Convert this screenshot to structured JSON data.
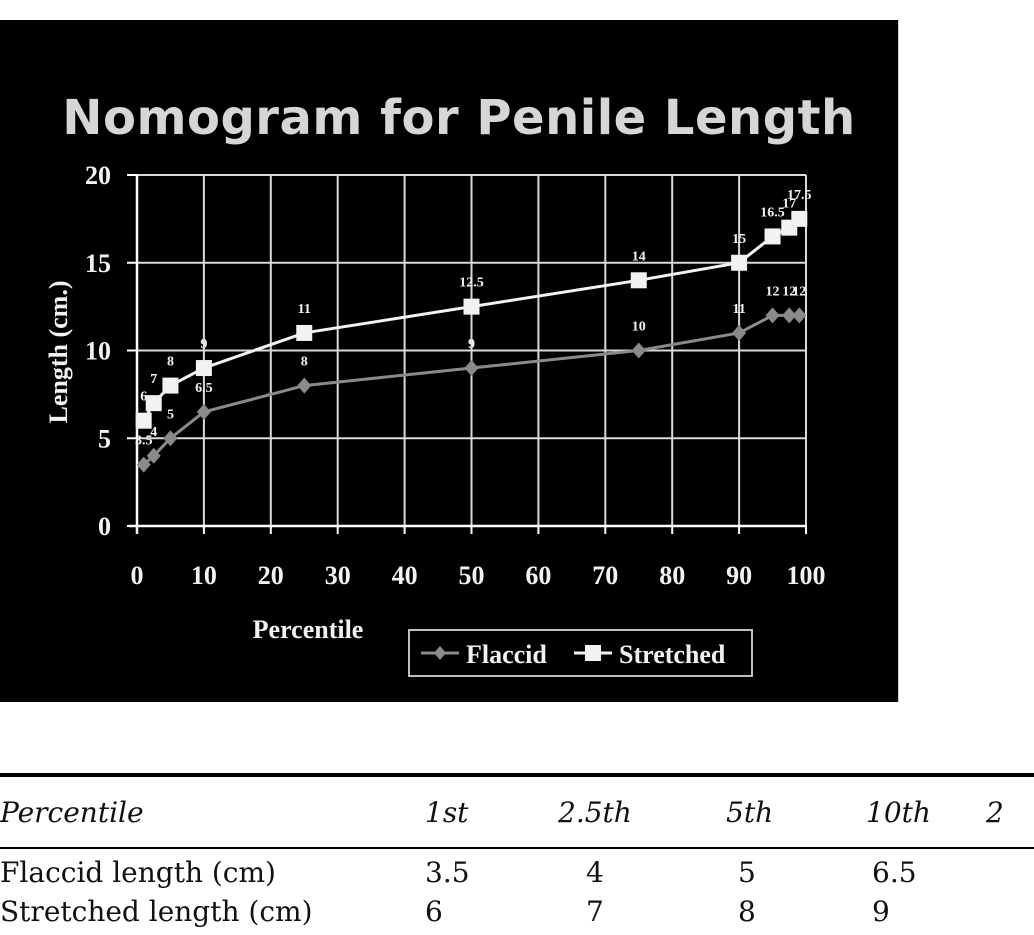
{
  "chart_data": {
    "type": "line",
    "title": "Nomogram for Penile Length",
    "xlabel": "Percentile",
    "ylabel": "Length (cm.)",
    "xlim": [
      0,
      100
    ],
    "ylim": [
      0,
      20
    ],
    "xticks": [
      0,
      10,
      20,
      30,
      40,
      50,
      60,
      70,
      80,
      90,
      100
    ],
    "yticks": [
      0,
      5,
      10,
      15,
      20
    ],
    "grid": true,
    "legend": "bottom",
    "background": "#000000",
    "series": [
      {
        "name": "Flaccid",
        "marker": "diamond",
        "color": "#8a8a8a",
        "x": [
          1,
          2.5,
          5,
          10,
          25,
          50,
          75,
          90,
          95,
          97.5,
          99
        ],
        "y": [
          3.5,
          4,
          5,
          6.5,
          8,
          9,
          10,
          11,
          12,
          12,
          12
        ],
        "labels": [
          "3.5",
          "4",
          "5",
          "6.5",
          "8",
          "9",
          "10",
          "11",
          "12",
          "12",
          "12"
        ]
      },
      {
        "name": "Stretched",
        "marker": "square",
        "color": "#f2f2f2",
        "x": [
          1,
          2.5,
          5,
          10,
          25,
          50,
          75,
          90,
          95,
          97.5,
          99
        ],
        "y": [
          6,
          7,
          8,
          9,
          11,
          12.5,
          14,
          15,
          16.5,
          17,
          17.5
        ],
        "labels": [
          "6",
          "7",
          "8",
          "9",
          "11",
          "12.5",
          "14",
          "15",
          "16.5",
          "17",
          "17.5"
        ]
      }
    ]
  },
  "table": {
    "header": [
      "Percentile",
      "1st",
      "2.5th",
      "5th",
      "10th",
      "2"
    ],
    "rows": [
      [
        "Flaccid length (cm)",
        "3.5",
        "4",
        "5",
        "6.5",
        ""
      ],
      [
        "Stretched length (cm)",
        "6",
        "7",
        "8",
        "9",
        ""
      ]
    ]
  }
}
